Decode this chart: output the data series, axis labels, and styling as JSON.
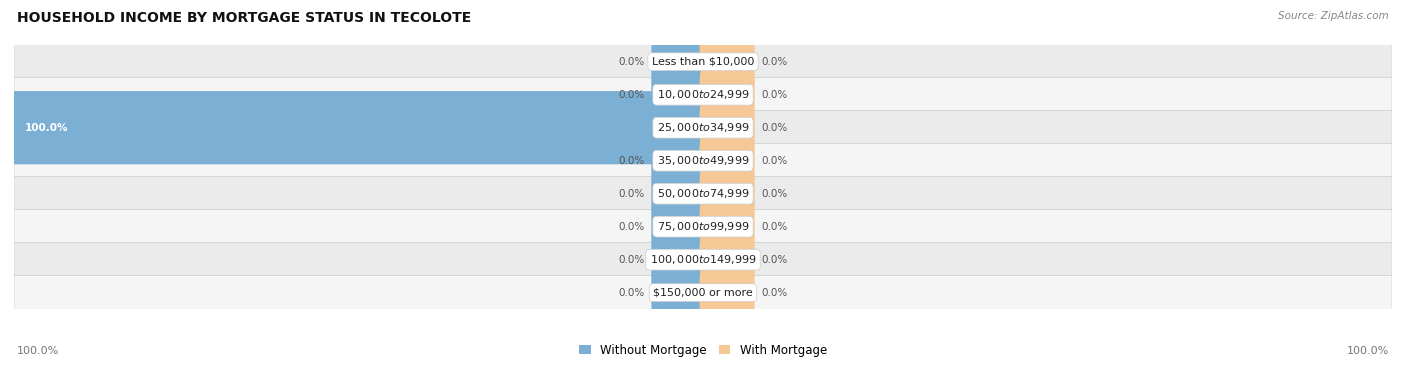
{
  "title": "HOUSEHOLD INCOME BY MORTGAGE STATUS IN TECOLOTE",
  "source": "Source: ZipAtlas.com",
  "categories": [
    "Less than $10,000",
    "$10,000 to $24,999",
    "$25,000 to $34,999",
    "$35,000 to $49,999",
    "$50,000 to $74,999",
    "$75,000 to $99,999",
    "$100,000 to $149,999",
    "$150,000 or more"
  ],
  "without_mortgage": [
    0.0,
    0.0,
    100.0,
    0.0,
    0.0,
    0.0,
    0.0,
    0.0
  ],
  "with_mortgage": [
    0.0,
    0.0,
    0.0,
    0.0,
    0.0,
    0.0,
    0.0,
    0.0
  ],
  "color_without": "#7BAFD4",
  "color_with": "#F5C896",
  "label_text_color": "#555555",
  "x_min": -100,
  "x_max": 100,
  "legend_label_without": "Without Mortgage",
  "legend_label_with": "With Mortgage",
  "bottom_left_label": "100.0%",
  "bottom_right_label": "100.0%"
}
